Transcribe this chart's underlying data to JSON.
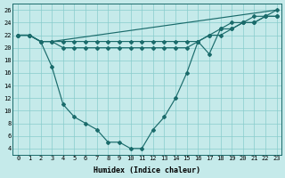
{
  "xlabel": "Humidex (Indice chaleur)",
  "bg_color": "#c5eaea",
  "line_color": "#1a6b6b",
  "grid_color": "#88cccc",
  "xlim_min": -0.5,
  "xlim_max": 23.4,
  "ylim_min": 3.0,
  "ylim_max": 27.0,
  "xticks": [
    0,
    1,
    2,
    3,
    4,
    5,
    6,
    7,
    8,
    9,
    10,
    11,
    12,
    13,
    14,
    15,
    16,
    17,
    18,
    19,
    20,
    21,
    22,
    23
  ],
  "yticks": [
    4,
    6,
    8,
    10,
    12,
    14,
    16,
    18,
    20,
    22,
    24,
    26
  ],
  "line1_x": [
    0,
    1,
    2,
    3,
    4,
    5,
    6,
    7,
    8,
    9,
    10,
    11,
    12,
    13,
    14,
    15,
    16,
    17,
    18,
    19,
    20,
    21,
    22,
    23
  ],
  "line1_y": [
    22,
    22,
    21,
    17,
    11,
    9,
    8,
    7,
    5,
    5,
    4,
    4,
    7,
    9,
    12,
    16,
    21,
    19,
    23,
    24,
    24,
    25,
    25,
    26
  ],
  "line2_x": [
    0,
    1,
    2,
    3,
    23
  ],
  "line2_y": [
    22,
    22,
    21,
    21,
    26
  ],
  "line3_x": [
    0,
    1,
    2,
    3,
    4,
    5,
    6,
    7,
    8,
    9,
    10,
    11,
    12,
    13,
    14,
    15,
    16,
    17,
    18,
    19,
    20,
    21,
    22,
    23
  ],
  "line3_y": [
    22,
    22,
    21,
    21,
    21,
    21,
    21,
    21,
    21,
    21,
    21,
    21,
    21,
    21,
    21,
    21,
    21,
    22,
    23,
    23,
    24,
    24,
    25,
    25
  ],
  "line4_x": [
    0,
    1,
    2,
    3,
    4,
    5,
    6,
    7,
    8,
    9,
    10,
    11,
    12,
    13,
    14,
    15,
    16,
    17,
    18,
    19,
    20,
    21,
    22,
    23
  ],
  "line4_y": [
    22,
    22,
    21,
    21,
    20,
    20,
    20,
    20,
    20,
    20,
    20,
    20,
    20,
    20,
    20,
    20,
    21,
    22,
    22,
    23,
    24,
    24,
    25,
    25
  ]
}
